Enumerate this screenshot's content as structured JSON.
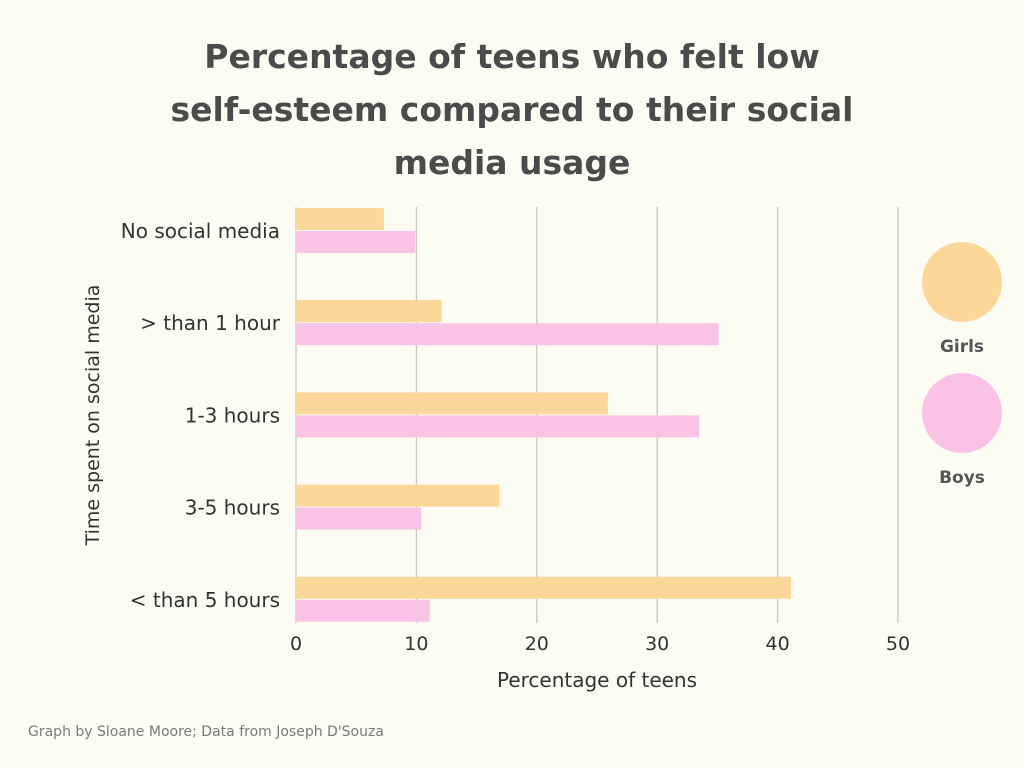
{
  "title_lines": [
    "Percentage of teens who felt low",
    "self-esteem compared to their social",
    "media usage"
  ],
  "footer": "Graph by Sloane Moore; Data from Joseph D'Souza",
  "colors": {
    "girls": "#fdd699",
    "boys": "#fac3e6",
    "grid": "#c8c8c0",
    "text": "#333333"
  },
  "chart_data": {
    "type": "bar",
    "orientation": "horizontal",
    "title": "Percentage of teens who felt low self-esteem compared to their social media usage",
    "xlabel": "Percentage of teens",
    "ylabel": "Time spent on social media",
    "xlim": [
      0,
      50
    ],
    "xticks": [
      0,
      10,
      20,
      30,
      40,
      50
    ],
    "grid": true,
    "legend_position": "right",
    "categories": [
      "No social media",
      "> than 1 hour",
      "1-3 hours",
      "3-5 hours",
      "< than 5 hours"
    ],
    "series": [
      {
        "name": "Girls",
        "values": [
          7.3,
          12.1,
          25.9,
          16.9,
          41.1
        ]
      },
      {
        "name": "Boys",
        "values": [
          9.9,
          35.1,
          33.5,
          10.4,
          11.1
        ]
      }
    ]
  }
}
